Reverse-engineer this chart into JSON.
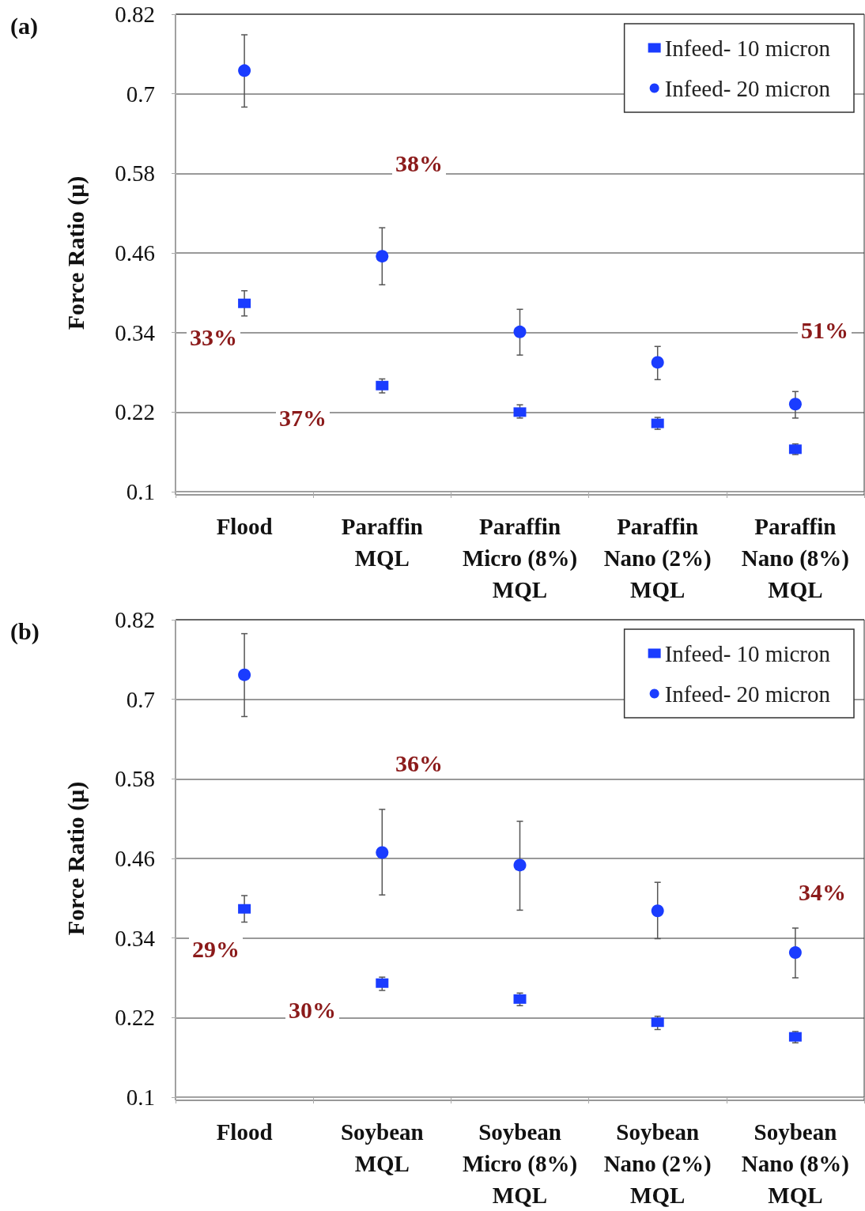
{
  "chart_data": [
    {
      "type": "scatter",
      "title": "(a)",
      "ylabel": "Force Ratio (μ)",
      "categories": [
        "Flood",
        "Paraffin\nMQL",
        "Paraffin\nMicro (8%)\nMQL",
        "Paraffin\nNano (2%)\nMQL",
        "Paraffin\nNano (8%)\nMQL"
      ],
      "ylim": [
        0.1,
        0.82
      ],
      "yticks": [
        0.1,
        0.22,
        0.34,
        0.46,
        0.58,
        0.7,
        0.82
      ],
      "grid": "y",
      "legend": "top right",
      "series": [
        {
          "name": "Infeed- 10 micron",
          "color": "#1a3cff",
          "marker": "square",
          "values": [
            0.384,
            0.26,
            0.22,
            0.203,
            0.164
          ],
          "errors": [
            [
              0.365,
              0.403
            ],
            [
              0.249,
              0.27
            ],
            [
              0.211,
              0.231
            ],
            [
              0.194,
              0.212
            ],
            [
              0.156,
              0.172
            ]
          ]
        },
        {
          "name": "Infeed- 20 micron",
          "color": "#1a3cff",
          "marker": "circle",
          "values": [
            0.735,
            0.455,
            0.341,
            0.295,
            0.232
          ],
          "errors": [
            [
              0.68,
              0.789
            ],
            [
              0.412,
              0.498
            ],
            [
              0.306,
              0.375
            ],
            [
              0.269,
              0.319
            ],
            [
              0.211,
              0.251
            ]
          ]
        }
      ],
      "annotations": [
        "38%",
        "33%",
        "37%",
        "51%"
      ]
    },
    {
      "type": "scatter",
      "title": "(b)",
      "ylabel": "Force Ratio (μ)",
      "categories": [
        "Flood",
        "Soybean\nMQL",
        "Soybean\nMicro (8%)\nMQL",
        "Soybean\nNano (2%)\nMQL",
        "Soybean\nNano (8%)\nMQL"
      ],
      "ylim": [
        0.1,
        0.82
      ],
      "yticks": [
        0.1,
        0.22,
        0.34,
        0.46,
        0.58,
        0.7,
        0.82
      ],
      "grid": "y",
      "legend": "top right",
      "series": [
        {
          "name": "Infeed- 10 micron",
          "color": "#1a3cff",
          "marker": "square",
          "values": [
            0.384,
            0.272,
            0.248,
            0.213,
            0.191
          ],
          "errors": [
            [
              0.364,
              0.404
            ],
            [
              0.261,
              0.281
            ],
            [
              0.238,
              0.257
            ],
            [
              0.202,
              0.222
            ],
            [
              0.182,
              0.199
            ]
          ]
        },
        {
          "name": "Infeed- 20 micron",
          "color": "#1a3cff",
          "marker": "circle",
          "values": [
            0.737,
            0.469,
            0.45,
            0.381,
            0.318
          ],
          "errors": [
            [
              0.674,
              0.799
            ],
            [
              0.405,
              0.534
            ],
            [
              0.382,
              0.516
            ],
            [
              0.339,
              0.424
            ],
            [
              0.28,
              0.355
            ]
          ]
        }
      ],
      "annotations": [
        "36%",
        "29%",
        "30%",
        "34%"
      ]
    }
  ]
}
